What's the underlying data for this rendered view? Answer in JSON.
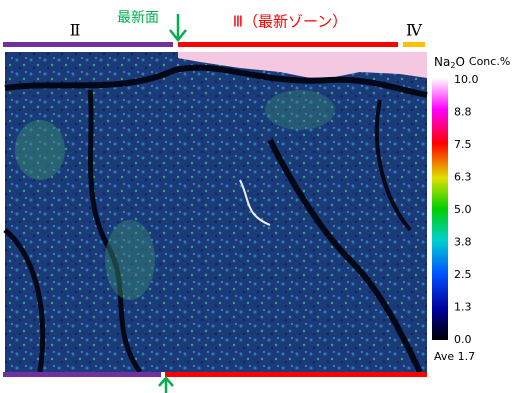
{
  "header": {
    "zone2": "Ⅱ",
    "surface": "最新面",
    "zone3": "Ⅲ（最新ゾーン）",
    "zone4": "Ⅳ"
  },
  "colorbar": {
    "element": {
      "base": "Na",
      "subscript": "2",
      "suffix": "O"
    },
    "unit": "Conc.%",
    "ticks": [
      "10.0",
      "8.8",
      "7.5",
      "6.3",
      "5.0",
      "3.8",
      "2.5",
      "1.3",
      "0.0"
    ],
    "average": "Ave 1.7"
  }
}
